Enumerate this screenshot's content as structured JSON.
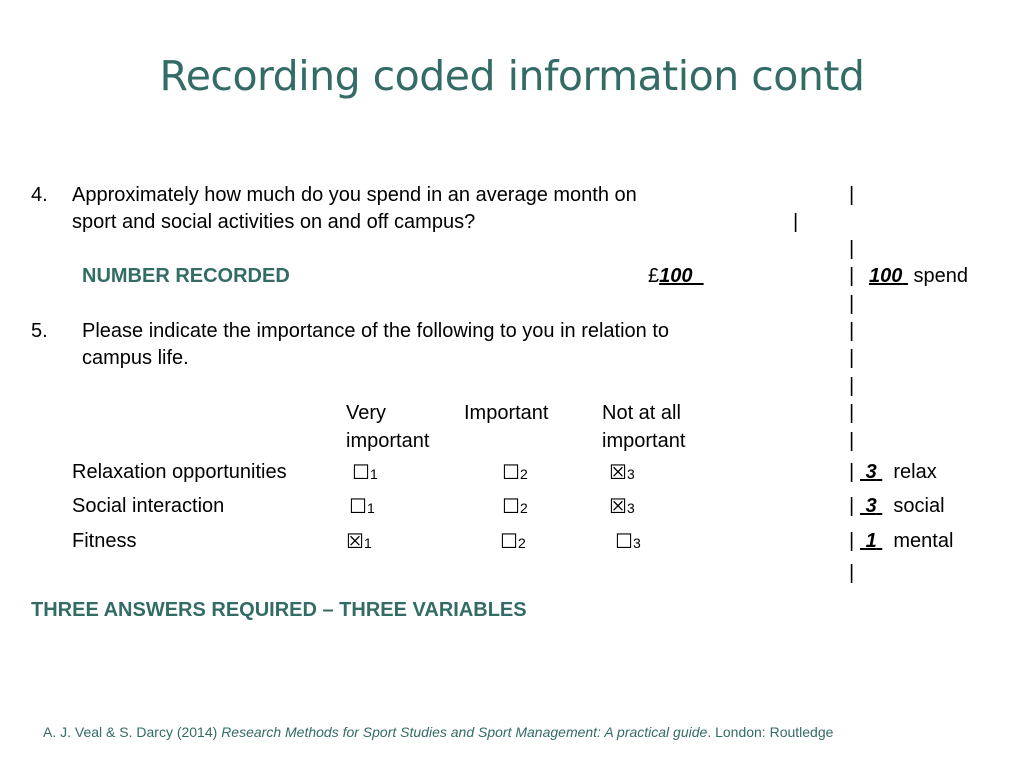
{
  "title": "Recording coded information contd",
  "q4": {
    "number": "4.",
    "line1": "Approximately how much do you spend in an average month on",
    "line2": "sport and social activities on and off campus?",
    "recorded_label": "NUMBER RECORDED",
    "currency": "£",
    "amount": "100",
    "code_value": "100",
    "code_var": "spend"
  },
  "q5": {
    "number": "5.",
    "line1": "Please indicate the importance of the following to you in relation to",
    "line2": "campus life.",
    "columns": {
      "c1_line1": "Very",
      "c1_line2": "important",
      "c2_line1": "Important",
      "c3_line1": "Not at all",
      "c3_line2": "important"
    },
    "rows": [
      {
        "label": "Relaxation opportunities",
        "box1": "☐",
        "num1": "1",
        "box2": "☐",
        "num2": "2",
        "box3": "☒",
        "num3": "3",
        "code": "3",
        "var": "relax"
      },
      {
        "label": "Social interaction",
        "box1": "☐",
        "num1": "1",
        "box2": "☐",
        "num2": "2",
        "box3": "☒",
        "num3": "3",
        "code": "3",
        "var": "social"
      },
      {
        "label": "Fitness",
        "box1": "☒",
        "num1": "1",
        "box2": "☐",
        "num2": "2",
        "box3": "☐",
        "num3": "3",
        "code": "1",
        "var": "mental"
      }
    ]
  },
  "divider": "|",
  "summary": "THREE ANSWERS REQUIRED – THREE VARIABLES",
  "footer": {
    "authors": "A. J. Veal & S. Darcy (2014) ",
    "book": "Research Methods for Sport Studies and Sport Management: A practical guide",
    "publisher": ". London: Routledge"
  }
}
